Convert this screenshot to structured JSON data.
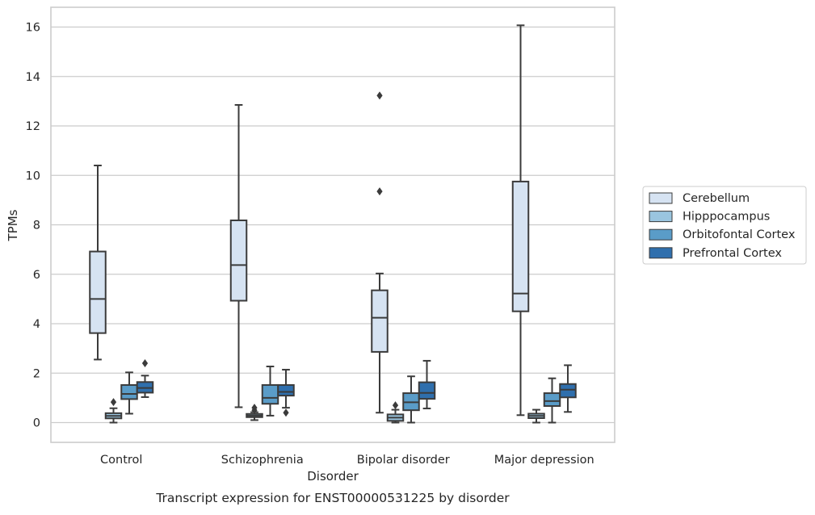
{
  "caption": "Transcript expression for ENST00000531225 by disorder",
  "chart_data": {
    "type": "box",
    "xlabel": "Disorder",
    "ylabel": "TPMs",
    "ylim": [
      -0.8,
      16.8
    ],
    "yticks": [
      0,
      2,
      4,
      6,
      8,
      10,
      12,
      14,
      16
    ],
    "grid": true,
    "legend_position": "right",
    "categories": [
      "Control",
      "Schizophrenia",
      "Bipolar disorder",
      "Major depression"
    ],
    "series": [
      {
        "name": "Cerebellum",
        "color": "#d6e3f2",
        "boxes": [
          {
            "whisker_low": 2.55,
            "q1": 3.62,
            "median": 5.0,
            "q3": 6.92,
            "whisker_high": 10.4,
            "outliers": []
          },
          {
            "whisker_low": 0.62,
            "q1": 4.93,
            "median": 6.37,
            "q3": 8.18,
            "whisker_high": 12.85,
            "outliers": []
          },
          {
            "whisker_low": 0.4,
            "q1": 2.86,
            "median": 4.24,
            "q3": 5.35,
            "whisker_high": 6.03,
            "outliers": [
              9.35,
              13.23
            ]
          },
          {
            "whisker_low": 0.3,
            "q1": 4.5,
            "median": 5.22,
            "q3": 9.75,
            "whisker_high": 16.07,
            "outliers": []
          }
        ]
      },
      {
        "name": "Hipppocampus",
        "color": "#9ac5df",
        "boxes": [
          {
            "whisker_low": 0.0,
            "q1": 0.17,
            "median": 0.27,
            "q3": 0.38,
            "whisker_high": 0.58,
            "outliers": [
              0.83
            ]
          },
          {
            "whisker_low": 0.1,
            "q1": 0.22,
            "median": 0.28,
            "q3": 0.35,
            "whisker_high": 0.42,
            "outliers": [
              0.5,
              0.6
            ]
          },
          {
            "whisker_low": 0.0,
            "q1": 0.07,
            "median": 0.2,
            "q3": 0.33,
            "whisker_high": 0.52,
            "outliers": [
              0.7
            ]
          },
          {
            "whisker_low": 0.0,
            "q1": 0.18,
            "median": 0.27,
            "q3": 0.36,
            "whisker_high": 0.52,
            "outliers": []
          }
        ]
      },
      {
        "name": "Orbitofontal Cortex",
        "color": "#5a9cc8",
        "boxes": [
          {
            "whisker_low": 0.36,
            "q1": 0.95,
            "median": 1.16,
            "q3": 1.52,
            "whisker_high": 2.03,
            "outliers": []
          },
          {
            "whisker_low": 0.28,
            "q1": 0.76,
            "median": 1.0,
            "q3": 1.52,
            "whisker_high": 2.27,
            "outliers": []
          },
          {
            "whisker_low": 0.0,
            "q1": 0.5,
            "median": 0.82,
            "q3": 1.19,
            "whisker_high": 1.87,
            "outliers": []
          },
          {
            "whisker_low": 0.0,
            "q1": 0.67,
            "median": 0.87,
            "q3": 1.19,
            "whisker_high": 1.79,
            "outliers": []
          }
        ]
      },
      {
        "name": "Prefrontal Cortex",
        "color": "#2f6fad",
        "boxes": [
          {
            "whisker_low": 1.03,
            "q1": 1.21,
            "median": 1.4,
            "q3": 1.64,
            "whisker_high": 1.9,
            "outliers": [
              2.4
            ]
          },
          {
            "whisker_low": 0.6,
            "q1": 1.09,
            "median": 1.24,
            "q3": 1.52,
            "whisker_high": 2.14,
            "outliers": [
              0.4
            ]
          },
          {
            "whisker_low": 0.57,
            "q1": 0.96,
            "median": 1.2,
            "q3": 1.63,
            "whisker_high": 2.5,
            "outliers": []
          },
          {
            "whisker_low": 0.43,
            "q1": 1.02,
            "median": 1.33,
            "q3": 1.56,
            "whisker_high": 2.32,
            "outliers": []
          }
        ]
      }
    ]
  }
}
